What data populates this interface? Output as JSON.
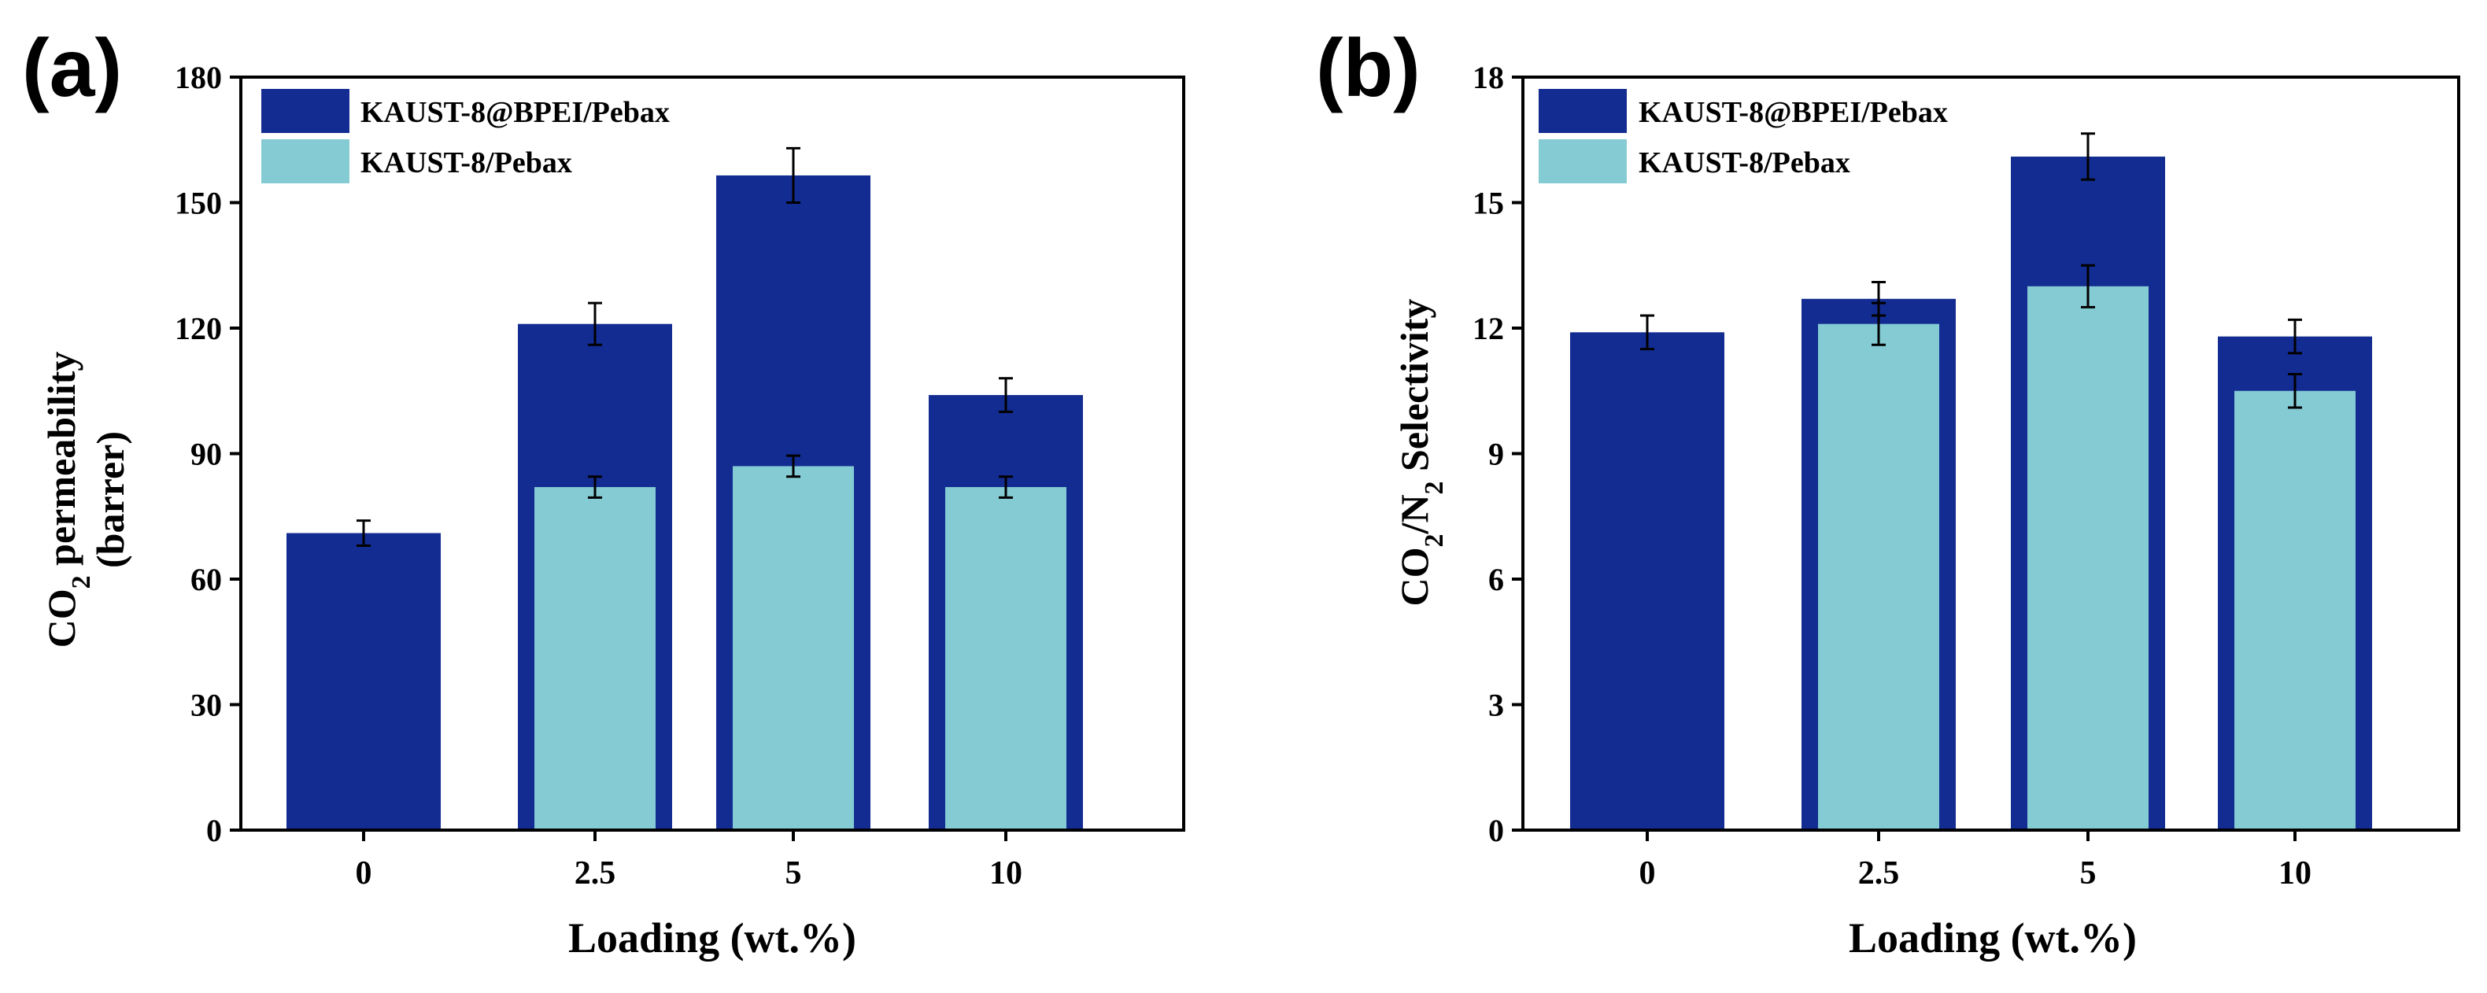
{
  "colors": {
    "dark_series": "#132C91",
    "light_series": "#84CBD3",
    "axis": "#000000",
    "background": "#ffffff"
  },
  "chart_data": [
    {
      "type": "bar",
      "panel_label": "(a)",
      "title": "",
      "categories": [
        "0",
        "2.5",
        "5",
        "10"
      ],
      "xlabel": "Loading (wt.%)",
      "ylabel_line1_pre": "CO",
      "ylabel_line1_sub": "2",
      "ylabel_line1_post": " permeability",
      "ylabel_line2": "(barrer)",
      "ylim": [
        0,
        180
      ],
      "yticks": [
        0,
        30,
        60,
        90,
        120,
        150,
        180
      ],
      "ytick_labels": [
        "0",
        "30",
        "60",
        "90",
        "120",
        "150",
        "180"
      ],
      "legend_position": "top-left",
      "series": [
        {
          "name": "KAUST-8@BPEI/Pebax",
          "color_key": "dark_series",
          "values": [
            71,
            121,
            156.5,
            104
          ],
          "errors": [
            3,
            5,
            6.5,
            4
          ]
        },
        {
          "name": "KAUST-8/Pebax",
          "color_key": "light_series",
          "values": [
            null,
            82,
            87,
            82
          ],
          "errors": [
            null,
            2.5,
            2.5,
            2.5
          ]
        }
      ]
    },
    {
      "type": "bar",
      "panel_label": "(b)",
      "title": "",
      "categories": [
        "0",
        "2.5",
        "5",
        "10"
      ],
      "xlabel": "Loading (wt.%)",
      "ylabel_segments": [
        {
          "text": "CO",
          "sub": false
        },
        {
          "text": "2",
          "sub": true
        },
        {
          "text": "/N",
          "sub": false
        },
        {
          "text": "2",
          "sub": true
        },
        {
          "text": " Selectivity",
          "sub": false
        }
      ],
      "ylim": [
        0,
        18
      ],
      "yticks": [
        0,
        3,
        6,
        9,
        12,
        15,
        18
      ],
      "ytick_labels": [
        "0",
        "3",
        "6",
        "9",
        "12",
        "15",
        "18"
      ],
      "legend_position": "top-left",
      "series": [
        {
          "name": "KAUST-8@BPEI/Pebax",
          "color_key": "dark_series",
          "values": [
            11.9,
            12.7,
            16.1,
            11.8
          ],
          "errors": [
            0.4,
            0.4,
            0.55,
            0.4
          ]
        },
        {
          "name": "KAUST-8/Pebax",
          "color_key": "light_series",
          "values": [
            null,
            12.1,
            13,
            10.5
          ],
          "errors": [
            null,
            0.5,
            0.5,
            0.4
          ]
        }
      ]
    }
  ]
}
